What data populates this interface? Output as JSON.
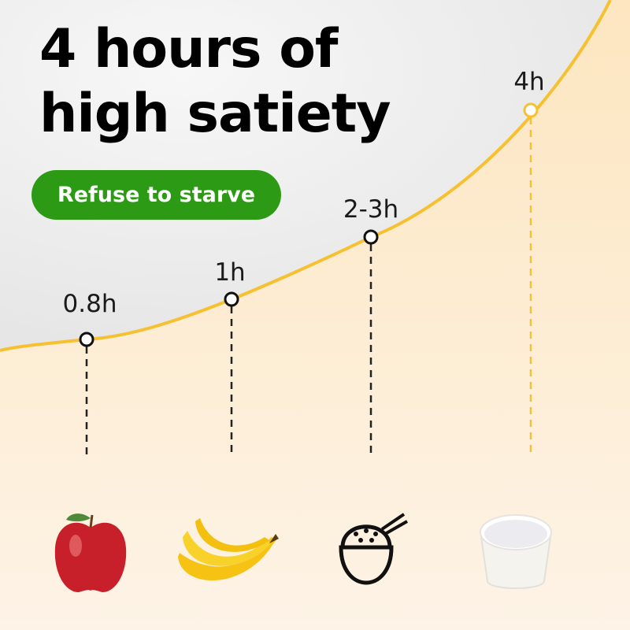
{
  "title_line1": "4 hours of",
  "title_line2": "high satiety",
  "badge": "Refuse to starve",
  "colors": {
    "curve": "#f7c030",
    "badge": "#2c9a14",
    "fill": "#fdebcc",
    "sky": "#f2f2f2"
  },
  "points": [
    {
      "label": "0.8h",
      "hours": 0.8,
      "food": "apple-icon"
    },
    {
      "label": "1h",
      "hours": 1,
      "food": "banana-icon"
    },
    {
      "label": "2-3h",
      "hours": 2.5,
      "food": "rice-bowl-icon"
    },
    {
      "label": "4h",
      "hours": 4,
      "food": "white-cup-icon"
    }
  ]
}
